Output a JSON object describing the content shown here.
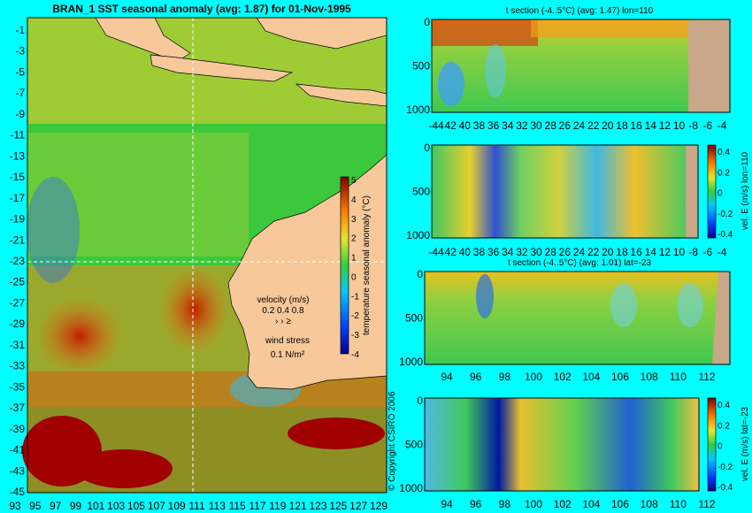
{
  "page": {
    "background": "#00FFFF"
  },
  "map": {
    "title": "BRAN_1  SST seasonal anomaly (avg: 1.87) for 01-Nov-1995",
    "lat_ticks": [
      "-1",
      "-3",
      "-5",
      "-7",
      "-9",
      "-11",
      "-13",
      "-15",
      "-17",
      "-19",
      "-21",
      "-23",
      "-25",
      "-27",
      "-29",
      "-31",
      "-33",
      "-35",
      "-37",
      "-39",
      "-41",
      "-43",
      "-45"
    ],
    "lon_ticks": [
      "93",
      "95",
      "97",
      "99",
      "101",
      "103",
      "105",
      "107",
      "109",
      "111",
      "113",
      "115",
      "117",
      "119",
      "121",
      "123",
      "125",
      "127",
      "129"
    ],
    "section_markers": {
      "lon": 110,
      "lat": -23
    },
    "colorbar": {
      "label": "temperature seasonal anomaly (°C)",
      "ticks": [
        "5",
        "4",
        "3",
        "2",
        "1",
        "0",
        "-1",
        "-2",
        "-3",
        "-4"
      ],
      "range": [
        -4,
        5
      ]
    },
    "velocity_legend": {
      "title": "velocity (m/s)",
      "values": "0.2 0.4 0.8",
      "arrows": "›  ›  ≥"
    },
    "wind_legend": {
      "title": "wind stress",
      "value": "0.1 N/m²"
    },
    "copyright": "© Copyright CSIRO 2006",
    "colors": {
      "land": "#F7C89A",
      "deep_red": "#A00000",
      "green": "#5BD44A",
      "yellow": "#E6E62E"
    }
  },
  "panels": [
    {
      "id": "t_section_lon110",
      "title": "t section (-4..5°C) (avg: 1.47) lon=110",
      "x_ticks": [
        "-44",
        "42",
        "40",
        "38",
        "36",
        "34",
        "32",
        "30",
        "28",
        "26",
        "24",
        "22",
        "20",
        "18",
        "16",
        "14",
        "12",
        "10",
        "-8",
        "-6",
        "-4"
      ],
      "y_ticks": [
        "0",
        "500",
        "1000"
      ],
      "land": "#C8A888"
    },
    {
      "id": "vel_e_lon110",
      "title": "",
      "x_ticks": [
        "-44",
        "42",
        "40",
        "38",
        "36",
        "34",
        "32",
        "30",
        "28",
        "26",
        "24",
        "22",
        "20",
        "18",
        "16",
        "14",
        "12",
        "10",
        "-8",
        "-6",
        "-4"
      ],
      "y_ticks": [
        "0",
        "500",
        "1000"
      ],
      "colorbar": {
        "label": "vel. E (m/s) lon=110",
        "ticks": [
          "0.4",
          "0.2",
          "0",
          "-0.2",
          "-0.4"
        ],
        "range": [
          -0.4,
          0.4
        ]
      },
      "land": "#C8A888"
    },
    {
      "id": "t_section_lat23",
      "title": "t section (-4..5°C) (avg: 1.01) lat=-23",
      "x_ticks": [
        "94",
        "96",
        "98",
        "100",
        "102",
        "104",
        "106",
        "108",
        "110",
        "112"
      ],
      "y_ticks": [
        "0",
        "500",
        "1000"
      ],
      "land": "#C8A888"
    },
    {
      "id": "vel_e_lat23",
      "title": "",
      "x_ticks": [
        "94",
        "96",
        "98",
        "100",
        "102",
        "104",
        "106",
        "108",
        "110",
        "112"
      ],
      "y_ticks": [
        "0",
        "500",
        "1000"
      ],
      "colorbar": {
        "label": "vel. E (m/s) lat=-23",
        "ticks": [
          "0.4",
          "0.2",
          "0",
          "-0.2",
          "-0.4"
        ],
        "range": [
          -0.4,
          0.4
        ]
      },
      "land": "#C8A888"
    }
  ],
  "chart_data": [
    {
      "type": "heatmap",
      "title": "BRAN_1  SST seasonal anomaly (avg: 1.87) for 01-Nov-1995",
      "xlabel": "",
      "ylabel": "",
      "x_range": [
        93,
        130
      ],
      "y_range": [
        -45,
        0
      ],
      "colorbar_range": [
        -4,
        5
      ],
      "average": 1.87,
      "grid": false
    },
    {
      "type": "heatmap",
      "title": "t section (-4..5°C) (avg: 1.47) lon=110",
      "y_range": [
        0,
        1050
      ],
      "average": 1.47
    },
    {
      "type": "heatmap",
      "title": "",
      "y_range": [
        0,
        1050
      ],
      "colorbar_range": [
        -0.4,
        0.4
      ]
    },
    {
      "type": "heatmap",
      "title": "t section (-4..5°C) (avg: 1.01) lat=-23",
      "x_range": [
        93,
        114
      ],
      "y_range": [
        0,
        1050
      ],
      "average": 1.01
    },
    {
      "type": "heatmap",
      "title": "",
      "x_range": [
        93,
        114
      ],
      "y_range": [
        0,
        1050
      ],
      "colorbar_range": [
        -0.4,
        0.4
      ]
    }
  ]
}
